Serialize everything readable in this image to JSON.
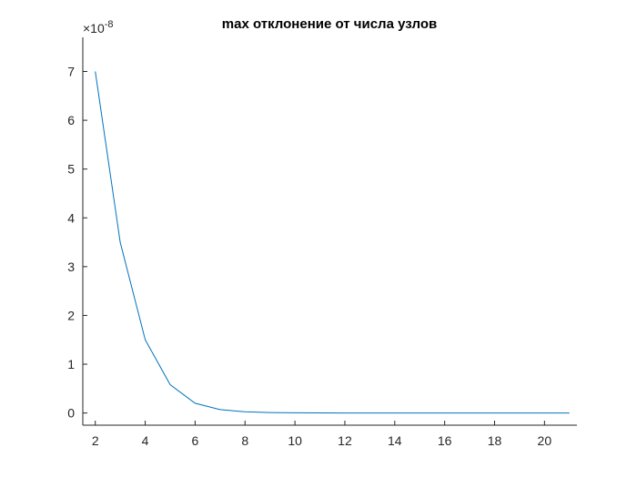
{
  "chart_data": {
    "type": "line",
    "title": "max отклонение от числа узлов",
    "xlabel": "",
    "ylabel": "",
    "xlim": [
      1.5,
      21.3
    ],
    "ylim": [
      -0.25,
      7.7
    ],
    "y_exponent_label": "×10",
    "y_exponent_power": "-8",
    "x_ticks": [
      "2",
      "4",
      "6",
      "8",
      "10",
      "12",
      "14",
      "16",
      "18",
      "20"
    ],
    "y_ticks": [
      "0",
      "1",
      "2",
      "3",
      "4",
      "5",
      "6",
      "7"
    ],
    "grid": false,
    "line_color": "#0072bd",
    "series": [
      {
        "x": [
          2,
          3,
          4,
          5,
          6,
          7,
          8,
          9,
          10,
          11,
          12,
          13,
          14,
          15,
          16,
          17,
          18,
          19,
          20,
          21
        ],
        "values": [
          7.0,
          3.5,
          1.5,
          0.58,
          0.2,
          0.07,
          0.025,
          0.01,
          0.004,
          0.002,
          0.001,
          0.0005,
          0.0003,
          0.0002,
          0.0001,
          0.0001,
          0.0,
          0.0,
          0.0,
          0.0
        ]
      }
    ]
  }
}
